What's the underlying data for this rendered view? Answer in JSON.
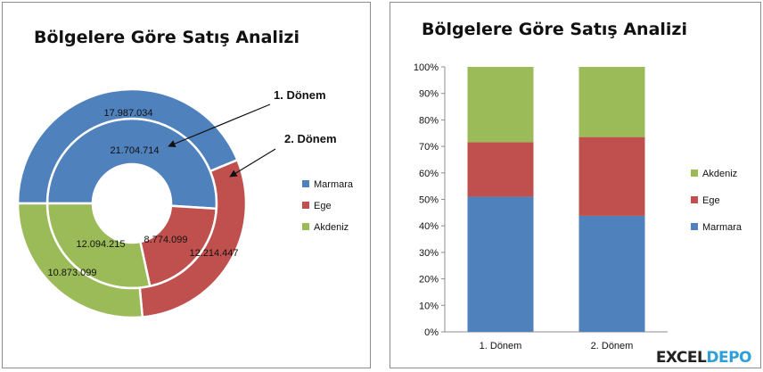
{
  "chart_data": [
    {
      "type": "pie",
      "title": "Bölgelere Göre Satış Analizi",
      "variant": "doughnut",
      "categories": [
        "Marmara",
        "Ege",
        "Akdeniz"
      ],
      "series": [
        {
          "name": "1. Dönem",
          "values": [
            21704714,
            8774099,
            12094215
          ],
          "labels": [
            "21.704.714",
            "8.774.099",
            "12.094.215"
          ]
        },
        {
          "name": "2. Dönem",
          "values": [
            17987034,
            12214447,
            10873099
          ],
          "labels": [
            "17.987.034",
            "12.214.447",
            "10.873.099"
          ]
        }
      ],
      "colors": [
        "#4f81bd",
        "#c0504d",
        "#9bbb59"
      ],
      "legend": {
        "position": "right",
        "entries": [
          "Marmara",
          "Ege",
          "Akdeniz"
        ]
      },
      "annotations": [
        "1. Dönem",
        "2. Dönem"
      ]
    },
    {
      "type": "bar",
      "stacking": "percent",
      "title": "Bölgelere Göre Satış Analizi",
      "categories": [
        "1. Dönem",
        "2. Dönem"
      ],
      "series": [
        {
          "name": "Marmara",
          "values": [
            21704714,
            17987034
          ]
        },
        {
          "name": "Ege",
          "values": [
            8774099,
            12214447
          ]
        },
        {
          "name": "Akdeniz",
          "values": [
            12094215,
            10873099
          ]
        }
      ],
      "colors": [
        "#4f81bd",
        "#c0504d",
        "#9bbb59"
      ],
      "ylim": [
        0,
        100
      ],
      "ytick_labels": [
        "0%",
        "10%",
        "20%",
        "30%",
        "40%",
        "50%",
        "60%",
        "70%",
        "80%",
        "90%",
        "100%"
      ],
      "legend": {
        "position": "right",
        "entries": [
          "Akdeniz",
          "Ege",
          "Marmara"
        ]
      },
      "grid": false
    }
  ],
  "watermark": {
    "prefix": "EXCEL",
    "highlight": "DEPO"
  }
}
